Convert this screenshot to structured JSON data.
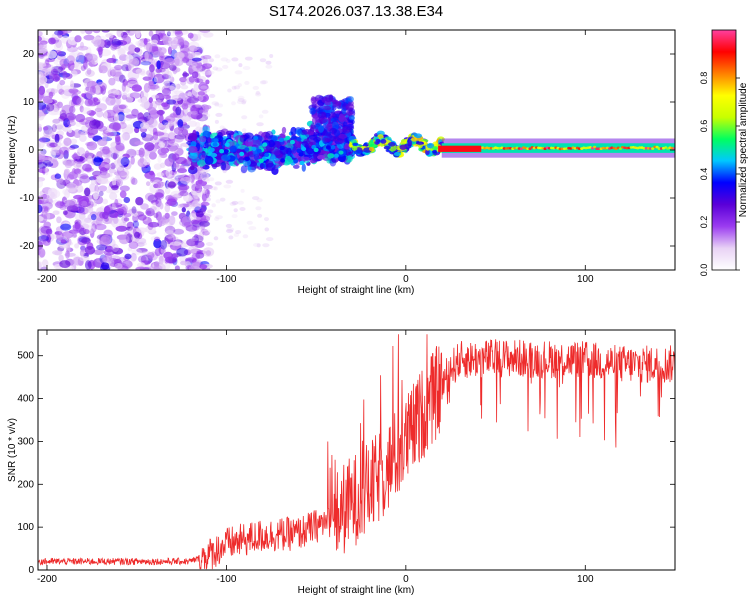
{
  "title": "S174.2026.037.13.38.E34",
  "chart_data": [
    {
      "type": "heatmap",
      "xlabel": "Height of straight line (km)",
      "ylabel": "Frequency (Hz)",
      "xlim": [
        -205,
        150
      ],
      "ylim": [
        -25,
        25
      ],
      "xticks": [
        -200,
        -100,
        0,
        100
      ],
      "yticks": [
        -20,
        -10,
        0,
        10,
        20
      ],
      "colorbar": {
        "label": "Normalized spectral amplitude",
        "range": [
          0.0,
          1.0
        ],
        "ticks": [
          0.0,
          0.2,
          0.4,
          0.6,
          0.8
        ],
        "tick_labels": [
          "0.0",
          "0.2",
          "0.4",
          "0.6",
          "0.8"
        ],
        "colormap": [
          "#ffffff",
          "#e8d2f5",
          "#9b3cf0",
          "#5a00d8",
          "#0000ff",
          "#00c8ff",
          "#00ff60",
          "#c8ff00",
          "#ffff00",
          "#ff8000",
          "#ff0000",
          "#ff3fa0"
        ]
      },
      "regions": [
        {
          "name": "scattered noise",
          "x_range": [
            -205,
            -120
          ],
          "freq_range": [
            -25,
            25
          ],
          "amplitude": [
            0.05,
            0.25
          ]
        },
        {
          "name": "onset cluster",
          "x_range": [
            -120,
            -30
          ],
          "freq_range": [
            -8,
            8
          ],
          "amplitude": [
            0.2,
            0.5
          ]
        },
        {
          "name": "transition",
          "x_range": [
            -30,
            20
          ],
          "freq_range": [
            -3,
            10
          ],
          "amplitude": [
            0.3,
            0.8
          ]
        },
        {
          "name": "carrier line",
          "x_range": [
            20,
            150
          ],
          "freq_range": [
            -1,
            2
          ],
          "amplitude": [
            0.6,
            1.0
          ]
        }
      ]
    },
    {
      "type": "line",
      "xlabel": "Height of straight line (km)",
      "ylabel": "SNR (10 * v/v)",
      "xlim": [
        -205,
        150
      ],
      "ylim": [
        0,
        560
      ],
      "xticks": [
        -200,
        -100,
        0,
        100
      ],
      "yticks": [
        0,
        100,
        200,
        300,
        400,
        500
      ],
      "color": "#ee2b2b",
      "profile": {
        "x": [
          -205,
          -120,
          -110,
          -100,
          -80,
          -60,
          -40,
          -30,
          -20,
          -10,
          0,
          10,
          20,
          25,
          30,
          50,
          100,
          120,
          150
        ],
        "y": [
          20,
          20,
          35,
          60,
          80,
          85,
          120,
          160,
          190,
          240,
          300,
          370,
          430,
          470,
          490,
          495,
          490,
          480,
          480
        ]
      }
    }
  ]
}
